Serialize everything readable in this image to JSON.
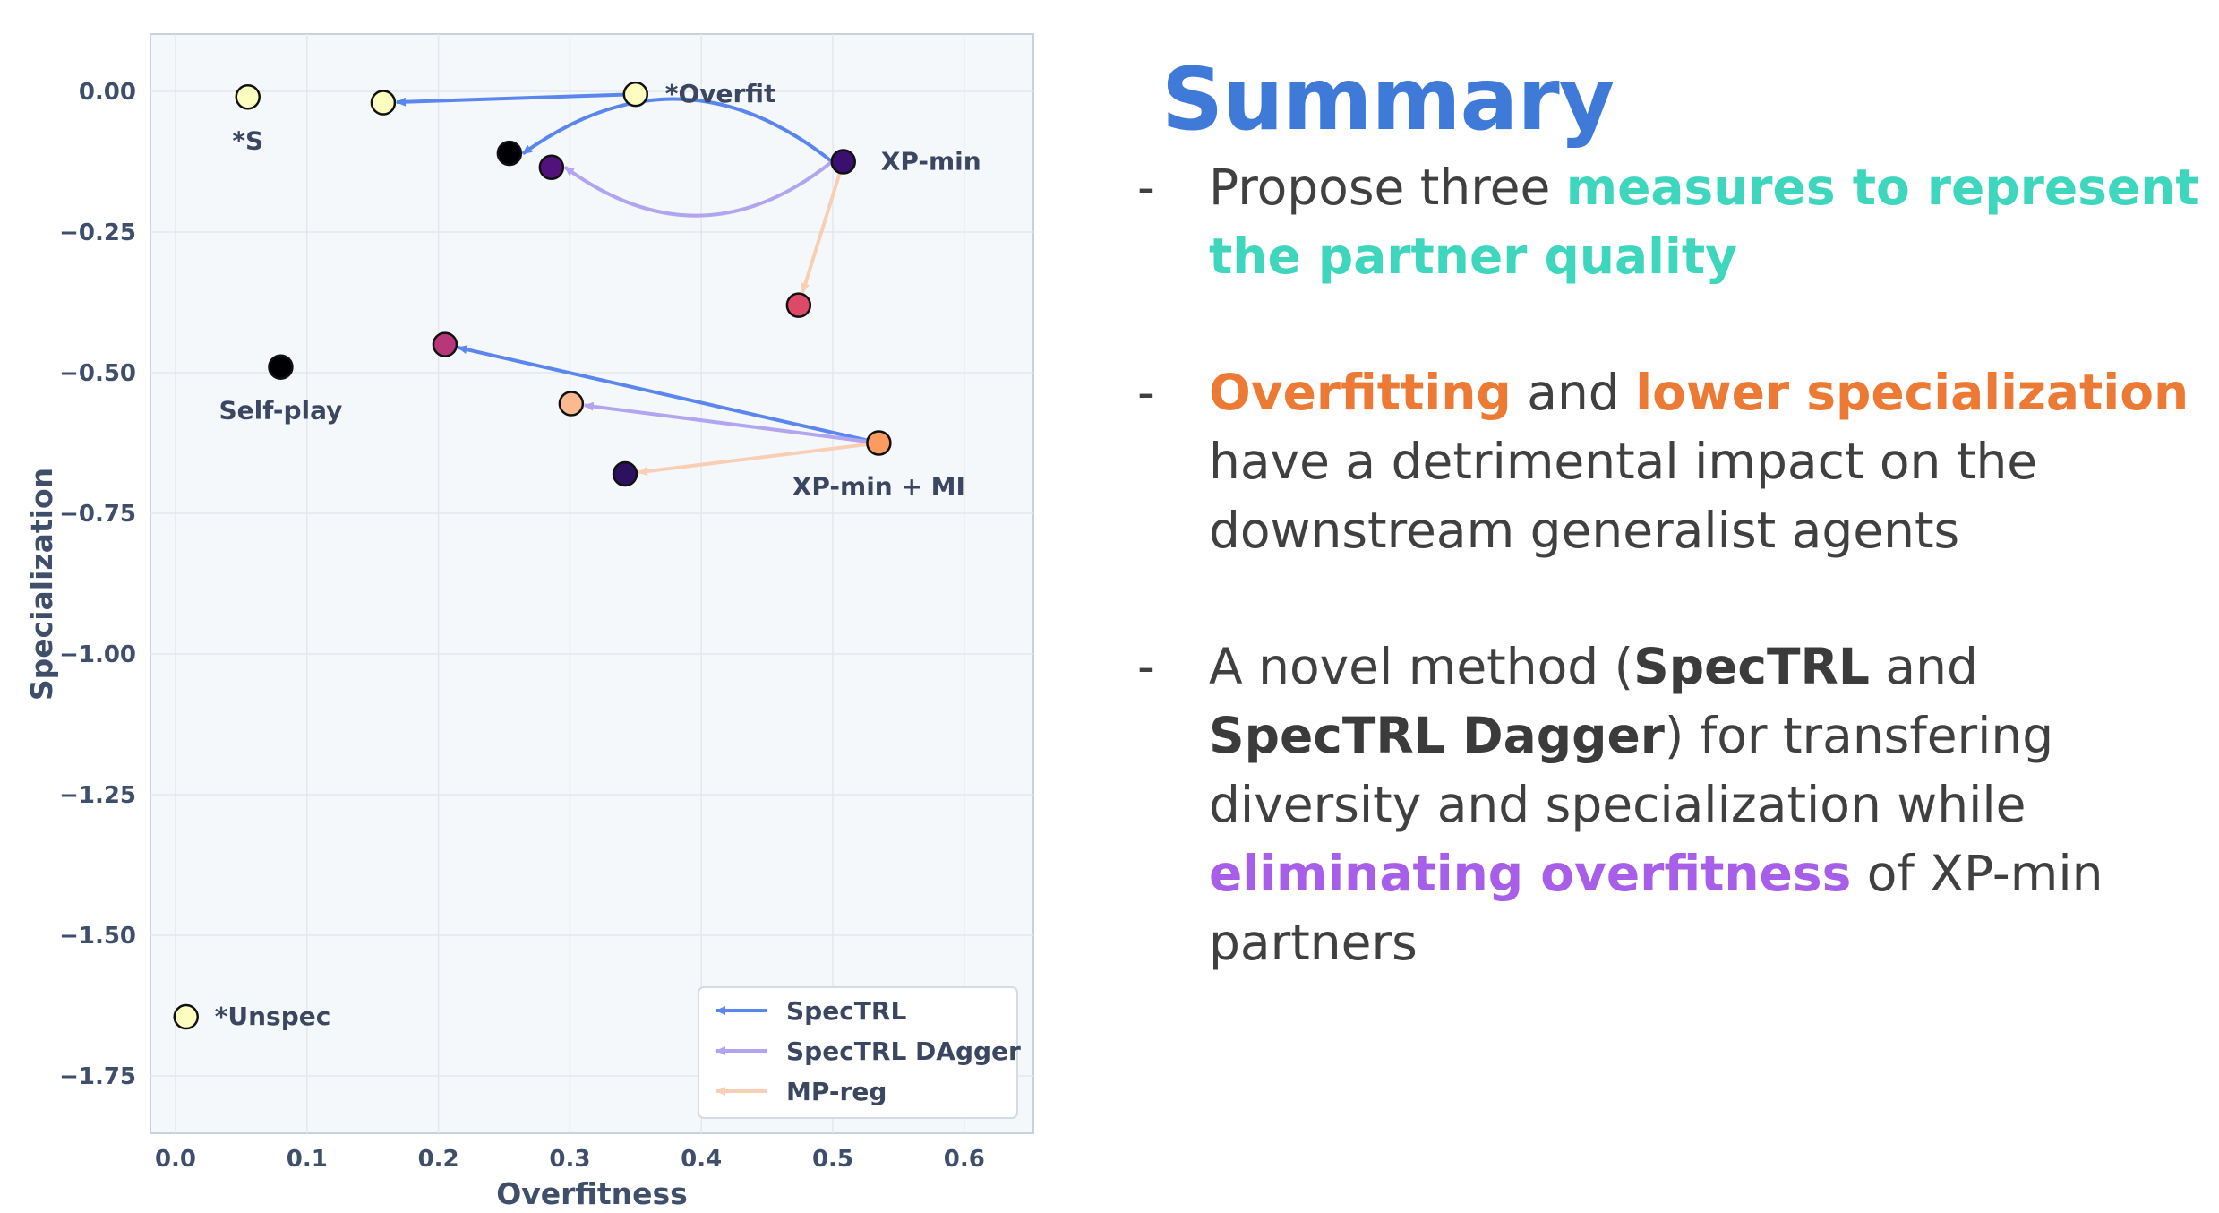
{
  "chart_data": {
    "type": "scatter",
    "xlabel": "Overfitness",
    "ylabel": "Specialization",
    "xlim": [
      -0.02,
      0.65
    ],
    "ylim": [
      -1.85,
      0.1
    ],
    "xticks": [
      0.0,
      0.1,
      0.2,
      0.3,
      0.4,
      0.5,
      0.6
    ],
    "xtick_labels": [
      "0.0",
      "0.1",
      "0.2",
      "0.3",
      "0.4",
      "0.5",
      "0.6"
    ],
    "yticks": [
      0.0,
      -0.25,
      -0.5,
      -0.75,
      -1.0,
      -1.25,
      -1.5,
      -1.75
    ],
    "ytick_labels": [
      "0.00",
      "−0.25",
      "−0.50",
      "−0.75",
      "−1.00",
      "−1.25",
      "−1.50",
      "−1.75"
    ],
    "grid": true,
    "legend_position": "bottom-right",
    "points": [
      {
        "x": 0.055,
        "y": -0.01,
        "color": "#fcfdbf",
        "label": "*S"
      },
      {
        "x": 0.158,
        "y": -0.02,
        "color": "#fcfdbf",
        "label": ""
      },
      {
        "x": 0.35,
        "y": -0.005,
        "color": "#fcfdbf",
        "label": "*Overfit"
      },
      {
        "x": 0.254,
        "y": -0.11,
        "color": "#000004",
        "label": ""
      },
      {
        "x": 0.286,
        "y": -0.135,
        "color": "#51127c",
        "label": ""
      },
      {
        "x": 0.508,
        "y": -0.125,
        "color": "#3b0f70",
        "label": "XP-min"
      },
      {
        "x": 0.474,
        "y": -0.38,
        "color": "#de4968",
        "label": ""
      },
      {
        "x": 0.08,
        "y": -0.49,
        "color": "#000004",
        "label": "Self-play"
      },
      {
        "x": 0.205,
        "y": -0.45,
        "color": "#b73779",
        "label": ""
      },
      {
        "x": 0.301,
        "y": -0.555,
        "color": "#fcb88e",
        "label": ""
      },
      {
        "x": 0.535,
        "y": -0.625,
        "color": "#fb9b62",
        "label": "XP-min + MI"
      },
      {
        "x": 0.342,
        "y": -0.68,
        "color": "#2c115f",
        "label": ""
      },
      {
        "x": 0.008,
        "y": -1.645,
        "color": "#fcfdbf",
        "label": "*Unspec"
      }
    ],
    "arrows": [
      {
        "from": [
          0.35,
          -0.005
        ],
        "to": [
          0.158,
          -0.02
        ],
        "series": "SpecTRL",
        "curve": 0
      },
      {
        "from": [
          0.508,
          -0.125
        ],
        "to": [
          0.254,
          -0.11
        ],
        "series": "SpecTRL",
        "curve": 0.35
      },
      {
        "from": [
          0.508,
          -0.125
        ],
        "to": [
          0.286,
          -0.135
        ],
        "series": "SpecTRL DAgger",
        "curve": -0.35
      },
      {
        "from": [
          0.508,
          -0.125
        ],
        "to": [
          0.474,
          -0.38
        ],
        "series": "MP-reg",
        "curve": 0
      },
      {
        "from": [
          0.535,
          -0.625
        ],
        "to": [
          0.205,
          -0.45
        ],
        "series": "SpecTRL",
        "curve": 0
      },
      {
        "from": [
          0.535,
          -0.625
        ],
        "to": [
          0.301,
          -0.555
        ],
        "series": "SpecTRL DAgger",
        "curve": 0
      },
      {
        "from": [
          0.535,
          -0.625
        ],
        "to": [
          0.342,
          -0.68
        ],
        "series": "MP-reg",
        "curve": 0
      }
    ],
    "series": [
      {
        "name": "SpecTRL",
        "color": "#5b86ee"
      },
      {
        "name": "SpecTRL DAgger",
        "color": "#b3a4f0"
      },
      {
        "name": "MP-reg",
        "color": "#f8cfb5"
      }
    ]
  },
  "summary": {
    "title": "Summary",
    "bullets": [
      {
        "dash": "-",
        "parts": [
          "Propose three ",
          "measures to represent the partner quality"
        ]
      },
      {
        "dash": "-",
        "parts": [
          "Overfitting",
          " and ",
          "lower specialization",
          " have a detrimental impact on the downstream generalist agents"
        ]
      },
      {
        "dash": "-",
        "parts": [
          "A novel method (",
          "SpecTRL",
          " and ",
          "SpecTRL Dagger",
          ") for transfering diversity and specialization while ",
          "eliminating overfitness",
          " of XP-min partners"
        ]
      }
    ]
  },
  "colors": {
    "title": "#3f7ad9",
    "teal": "#3ed6bd",
    "orange": "#ed7a34",
    "purple": "#a75ee8",
    "plot_bg": "#f5f8fb"
  }
}
